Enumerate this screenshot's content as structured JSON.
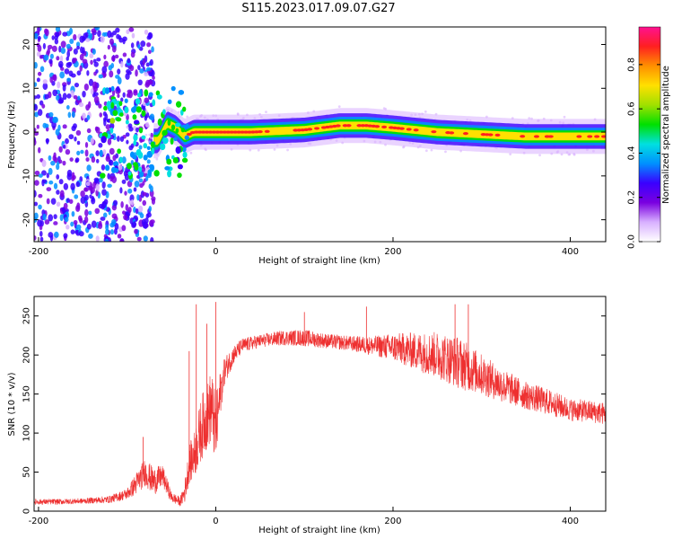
{
  "title": "S115.2023.017.09.07.G27",
  "chart_data": [
    {
      "type": "heatmap",
      "xlabel": "Height of straight line (km)",
      "ylabel": "Frequency (Hz)",
      "xlim": [
        -205,
        440
      ],
      "ylim": [
        -25,
        24
      ],
      "xticks": [
        -200,
        0,
        200,
        400
      ],
      "yticks": [
        -20,
        -10,
        0,
        10,
        20
      ],
      "grid": false,
      "colorbar": {
        "label": "Normalized spectral amplitude",
        "range": [
          0,
          0.97
        ],
        "ticks": [
          0.0,
          0.2,
          0.4,
          0.6,
          0.8
        ],
        "colors": [
          "#ffffff",
          "#d8b0ff",
          "#7a00e0",
          "#3a00ff",
          "#0090ff",
          "#00e0e0",
          "#00e000",
          "#a0e000",
          "#ffe000",
          "#ff9000",
          "#ff2020",
          "#ff1090"
        ]
      },
      "ridge": {
        "x": [
          -65,
          -55,
          -45,
          -35,
          -25,
          0,
          40,
          100,
          140,
          170,
          200,
          250,
          300,
          350,
          400,
          440
        ],
        "y": [
          -2,
          2,
          1,
          -1,
          0,
          0,
          0,
          0.5,
          1.5,
          1.5,
          1,
          0,
          -0.5,
          -1,
          -1,
          -1
        ]
      },
      "scatter_region": {
        "x": [
          -205,
          -80
        ],
        "y": [
          -25,
          24
        ]
      }
    },
    {
      "type": "line",
      "xlabel": "Height of straight line (km)",
      "ylabel": "SNR (10 * v/v)",
      "xlim": [
        -205,
        440
      ],
      "ylim": [
        0,
        275
      ],
      "xticks": [
        -200,
        0,
        200,
        400
      ],
      "yticks": [
        0,
        50,
        100,
        150,
        200,
        250
      ],
      "grid": false,
      "series": [
        {
          "color": "#ee3030",
          "x": [
            -205,
            -180,
            -150,
            -120,
            -100,
            -90,
            -80,
            -70,
            -60,
            -50,
            -40,
            -35,
            -30,
            -25,
            -20,
            -15,
            -10,
            -5,
            0,
            5,
            10,
            20,
            30,
            50,
            75,
            100,
            125,
            150,
            175,
            200,
            225,
            250,
            275,
            300,
            325,
            350,
            375,
            400,
            420,
            440
          ],
          "y": [
            12,
            12,
            13,
            15,
            22,
            35,
            50,
            38,
            45,
            18,
            12,
            25,
            60,
            70,
            90,
            110,
            120,
            135,
            100,
            150,
            180,
            200,
            212,
            218,
            222,
            222,
            218,
            215,
            212,
            210,
            205,
            200,
            190,
            175,
            160,
            148,
            140,
            130,
            128,
            125
          ],
          "noise": [
            3,
            3,
            3,
            4,
            6,
            12,
            15,
            15,
            12,
            6,
            5,
            12,
            20,
            25,
            30,
            35,
            35,
            40,
            40,
            25,
            15,
            10,
            8,
            7,
            8,
            9,
            8,
            8,
            10,
            15,
            20,
            25,
            28,
            22,
            18,
            15,
            14,
            12,
            12,
            12
          ],
          "spikes": [
            [
              -82,
              95
            ],
            [
              -30,
              205
            ],
            [
              -22,
              265
            ],
            [
              -10,
              240
            ],
            [
              0,
              268
            ],
            [
              100,
              255
            ],
            [
              170,
              262
            ],
            [
              270,
              265
            ],
            [
              285,
              265
            ]
          ]
        }
      ]
    }
  ]
}
